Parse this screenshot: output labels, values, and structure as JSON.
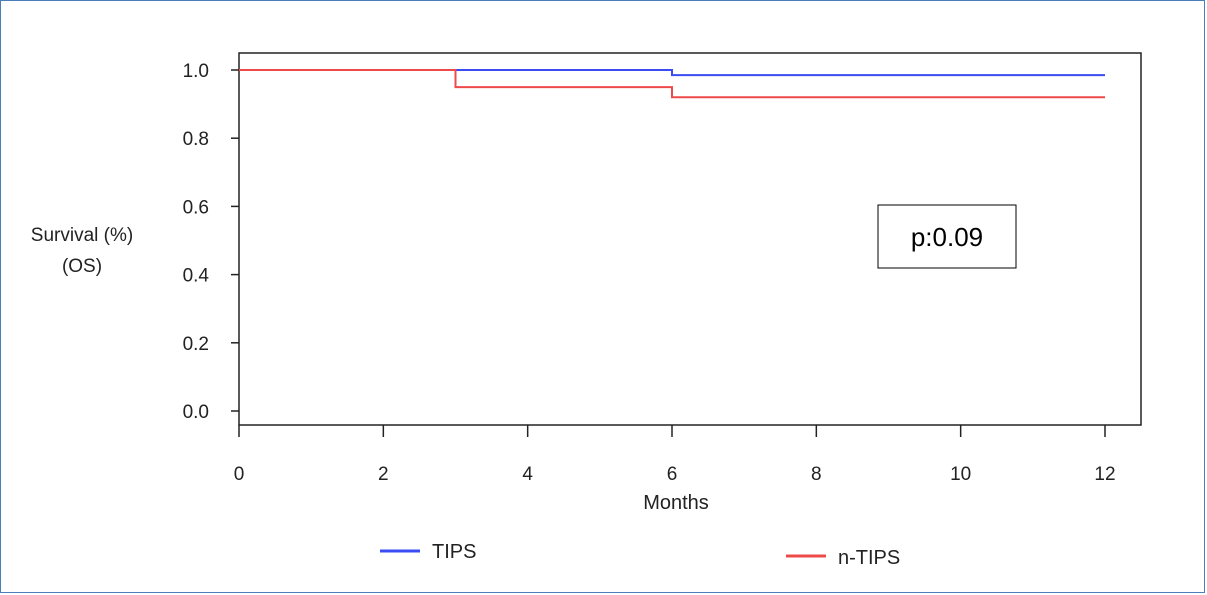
{
  "chart_data": {
    "type": "line",
    "subtype": "kaplan-meier step",
    "xlabel": "Months",
    "ylabel_lines": [
      "Survival (%)",
      "(OS)"
    ],
    "xlim": [
      0,
      12
    ],
    "ylim": [
      0,
      1.0
    ],
    "xticks": [
      0,
      2,
      4,
      6,
      8,
      10,
      12
    ],
    "yticks": [
      "0.0",
      "0.2",
      "0.4",
      "0.6",
      "0.8",
      "1.0"
    ],
    "grid": false,
    "legend_position": "bottom",
    "series": [
      {
        "name": "TIPS",
        "color": "#3b4cf5",
        "x": [
          0,
          6,
          6,
          12
        ],
        "y": [
          1.0,
          1.0,
          0.985,
          0.985
        ]
      },
      {
        "name": "n-TIPS",
        "color": "#ef4a4a",
        "x": [
          0,
          3,
          3,
          6,
          6,
          12
        ],
        "y": [
          1.0,
          1.0,
          0.95,
          0.95,
          0.92,
          0.92
        ]
      }
    ],
    "annotation": "p:0.09"
  }
}
